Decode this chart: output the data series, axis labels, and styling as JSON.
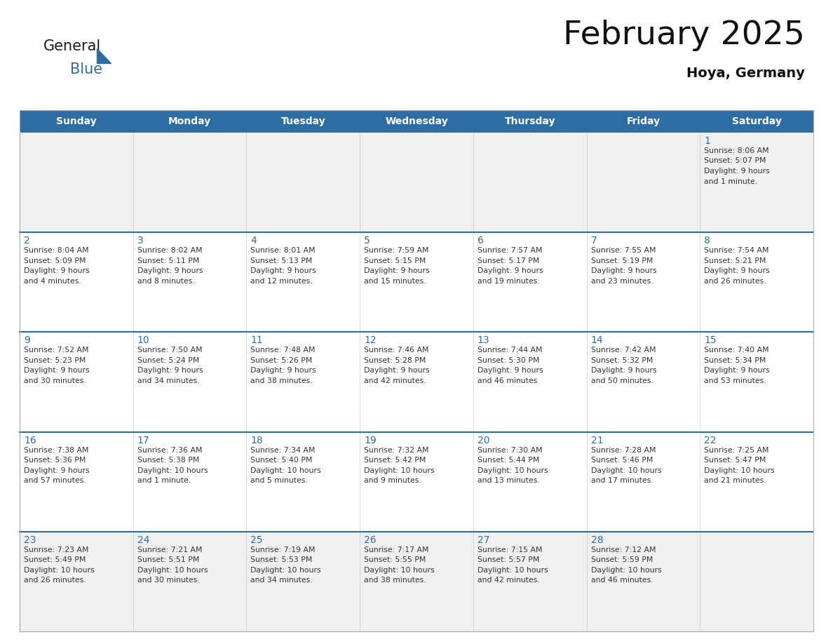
{
  "title": "February 2025",
  "subtitle": "Hoya, Germany",
  "header_bg": "#2e6da4",
  "header_text": "#ffffff",
  "days_of_week": [
    "Sunday",
    "Monday",
    "Tuesday",
    "Wednesday",
    "Thursday",
    "Friday",
    "Saturday"
  ],
  "cell_bg_light": "#f0f0f0",
  "cell_bg_white": "#ffffff",
  "divider_color": "#2e6da4",
  "day_number_color": "#2e6da4",
  "text_color": "#333333",
  "border_color": "#aaaaaa",
  "calendar_data": [
    [
      {
        "day": null,
        "sunrise": null,
        "sunset": null,
        "daylight": null
      },
      {
        "day": null,
        "sunrise": null,
        "sunset": null,
        "daylight": null
      },
      {
        "day": null,
        "sunrise": null,
        "sunset": null,
        "daylight": null
      },
      {
        "day": null,
        "sunrise": null,
        "sunset": null,
        "daylight": null
      },
      {
        "day": null,
        "sunrise": null,
        "sunset": null,
        "daylight": null
      },
      {
        "day": null,
        "sunrise": null,
        "sunset": null,
        "daylight": null
      },
      {
        "day": 1,
        "sunrise": "8:06 AM",
        "sunset": "5:07 PM",
        "daylight": "9 hours\nand 1 minute."
      }
    ],
    [
      {
        "day": 2,
        "sunrise": "8:04 AM",
        "sunset": "5:09 PM",
        "daylight": "9 hours\nand 4 minutes."
      },
      {
        "day": 3,
        "sunrise": "8:02 AM",
        "sunset": "5:11 PM",
        "daylight": "9 hours\nand 8 minutes."
      },
      {
        "day": 4,
        "sunrise": "8:01 AM",
        "sunset": "5:13 PM",
        "daylight": "9 hours\nand 12 minutes."
      },
      {
        "day": 5,
        "sunrise": "7:59 AM",
        "sunset": "5:15 PM",
        "daylight": "9 hours\nand 15 minutes."
      },
      {
        "day": 6,
        "sunrise": "7:57 AM",
        "sunset": "5:17 PM",
        "daylight": "9 hours\nand 19 minutes."
      },
      {
        "day": 7,
        "sunrise": "7:55 AM",
        "sunset": "5:19 PM",
        "daylight": "9 hours\nand 23 minutes."
      },
      {
        "day": 8,
        "sunrise": "7:54 AM",
        "sunset": "5:21 PM",
        "daylight": "9 hours\nand 26 minutes."
      }
    ],
    [
      {
        "day": 9,
        "sunrise": "7:52 AM",
        "sunset": "5:23 PM",
        "daylight": "9 hours\nand 30 minutes."
      },
      {
        "day": 10,
        "sunrise": "7:50 AM",
        "sunset": "5:24 PM",
        "daylight": "9 hours\nand 34 minutes."
      },
      {
        "day": 11,
        "sunrise": "7:48 AM",
        "sunset": "5:26 PM",
        "daylight": "9 hours\nand 38 minutes."
      },
      {
        "day": 12,
        "sunrise": "7:46 AM",
        "sunset": "5:28 PM",
        "daylight": "9 hours\nand 42 minutes."
      },
      {
        "day": 13,
        "sunrise": "7:44 AM",
        "sunset": "5:30 PM",
        "daylight": "9 hours\nand 46 minutes."
      },
      {
        "day": 14,
        "sunrise": "7:42 AM",
        "sunset": "5:32 PM",
        "daylight": "9 hours\nand 50 minutes."
      },
      {
        "day": 15,
        "sunrise": "7:40 AM",
        "sunset": "5:34 PM",
        "daylight": "9 hours\nand 53 minutes."
      }
    ],
    [
      {
        "day": 16,
        "sunrise": "7:38 AM",
        "sunset": "5:36 PM",
        "daylight": "9 hours\nand 57 minutes."
      },
      {
        "day": 17,
        "sunrise": "7:36 AM",
        "sunset": "5:38 PM",
        "daylight": "10 hours\nand 1 minute."
      },
      {
        "day": 18,
        "sunrise": "7:34 AM",
        "sunset": "5:40 PM",
        "daylight": "10 hours\nand 5 minutes."
      },
      {
        "day": 19,
        "sunrise": "7:32 AM",
        "sunset": "5:42 PM",
        "daylight": "10 hours\nand 9 minutes."
      },
      {
        "day": 20,
        "sunrise": "7:30 AM",
        "sunset": "5:44 PM",
        "daylight": "10 hours\nand 13 minutes."
      },
      {
        "day": 21,
        "sunrise": "7:28 AM",
        "sunset": "5:46 PM",
        "daylight": "10 hours\nand 17 minutes."
      },
      {
        "day": 22,
        "sunrise": "7:25 AM",
        "sunset": "5:47 PM",
        "daylight": "10 hours\nand 21 minutes."
      }
    ],
    [
      {
        "day": 23,
        "sunrise": "7:23 AM",
        "sunset": "5:49 PM",
        "daylight": "10 hours\nand 26 minutes."
      },
      {
        "day": 24,
        "sunrise": "7:21 AM",
        "sunset": "5:51 PM",
        "daylight": "10 hours\nand 30 minutes."
      },
      {
        "day": 25,
        "sunrise": "7:19 AM",
        "sunset": "5:53 PM",
        "daylight": "10 hours\nand 34 minutes."
      },
      {
        "day": 26,
        "sunrise": "7:17 AM",
        "sunset": "5:55 PM",
        "daylight": "10 hours\nand 38 minutes."
      },
      {
        "day": 27,
        "sunrise": "7:15 AM",
        "sunset": "5:57 PM",
        "daylight": "10 hours\nand 42 minutes."
      },
      {
        "day": 28,
        "sunrise": "7:12 AM",
        "sunset": "5:59 PM",
        "daylight": "10 hours\nand 46 minutes."
      },
      {
        "day": null,
        "sunrise": null,
        "sunset": null,
        "daylight": null
      }
    ]
  ]
}
